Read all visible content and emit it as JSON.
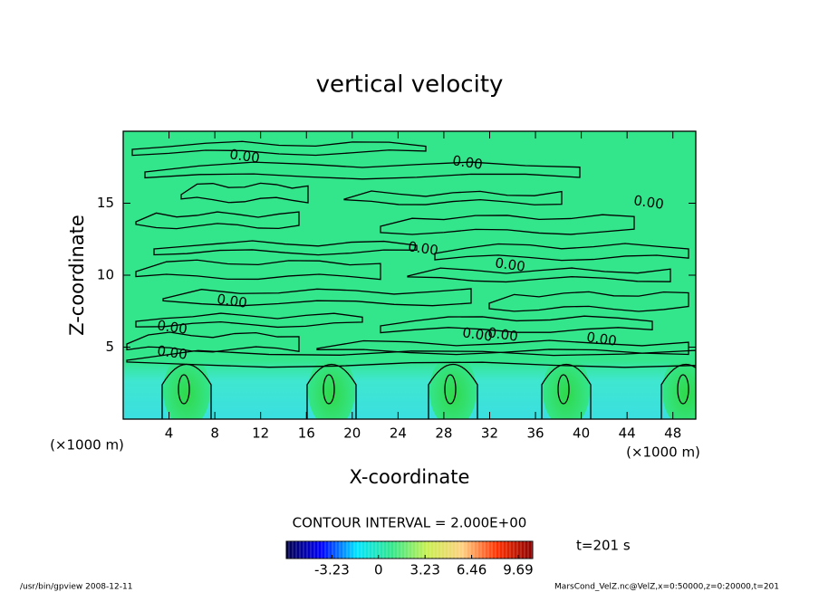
{
  "chart_data": {
    "type": "contour",
    "title": "vertical velocity",
    "x_label": "X-coordinate",
    "y_label": "Z-coordinate",
    "x_unit_left": "(×1000 m)",
    "x_unit_right": "(×1000 m)",
    "xlim": [
      0,
      50
    ],
    "xticks": [
      4,
      8,
      12,
      16,
      20,
      24,
      28,
      32,
      36,
      40,
      44,
      48
    ],
    "ylim": [
      0,
      20
    ],
    "yticks": [
      5,
      10,
      15
    ],
    "contour_labels": [
      "0.00",
      "0.00",
      "0.00",
      "0.00",
      "0.00",
      "0.00",
      "0.00",
      "0.00",
      "0.00",
      "0.00",
      "0.00"
    ],
    "contour_interval_text": "CONTOUR INTERVAL = 2.000E+00",
    "time_text": "t=201 s",
    "colorbar": {
      "lim": [
        -6.4,
        10.7
      ],
      "ticks": [
        -3.23,
        0,
        3.23,
        6.46,
        9.69
      ],
      "colors": [
        "#00004a",
        "#0000ff",
        "#00e5ff",
        "#33e68c",
        "#c8f050",
        "#ffd080",
        "#ff3000",
        "#8a0000"
      ]
    },
    "footer_left": "/usr/bin/gpview   2008-12-11",
    "footer_right": "MarsCond_VelZ.nc@VelZ,x=0:50000,z=0:20000,t=201"
  }
}
